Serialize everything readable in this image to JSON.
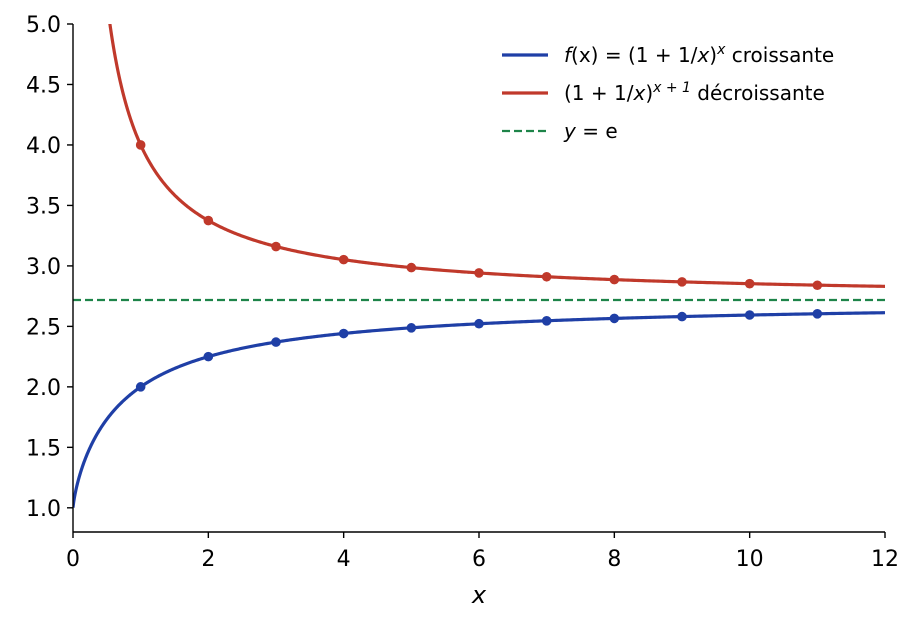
{
  "chart_data": {
    "type": "line",
    "title": "",
    "xlabel": "x",
    "ylabel": "",
    "xlim": [
      0,
      12
    ],
    "ylim": [
      0.8,
      5.0
    ],
    "xticks": [
      "0",
      "2",
      "4",
      "6",
      "8",
      "10",
      "12"
    ],
    "yticks": [
      "1.0",
      "1.5",
      "2.0",
      "2.5",
      "3.0",
      "3.5",
      "4.0",
      "4.5",
      "5.0"
    ],
    "grid": false,
    "legend_position": "top-right",
    "series": [
      {
        "id": "increasing",
        "name": "f(x) = (1 + 1/x)^x croissante",
        "legend": {
          "prefix": "f",
          "mid": "(x) = (1 + 1/",
          "var": "x",
          "close": ")",
          "sup": "x",
          "suffix": " croissante"
        },
        "color": "#1f3fa6",
        "style": "solid",
        "x_range": [
          0.0005,
          12
        ],
        "marker_x": [
          1,
          2,
          3,
          4,
          5,
          6,
          7,
          8,
          9,
          10,
          11
        ],
        "marker_y": [
          2.0,
          2.25,
          2.37,
          2.441,
          2.488,
          2.522,
          2.546,
          2.566,
          2.581,
          2.594,
          2.604
        ]
      },
      {
        "id": "decreasing",
        "name": "(1 + 1/x)^(x+1) décroissante",
        "legend": {
          "prefix": "",
          "mid": "(1 + 1/",
          "var": "x",
          "close": ")",
          "sup": "x + 1",
          "suffix": " décroissante"
        },
        "color": "#c0392b",
        "style": "solid",
        "x_range": [
          0.5,
          12
        ],
        "marker_x": [
          1,
          2,
          3,
          4,
          5,
          6,
          7,
          8,
          9,
          10,
          11
        ],
        "marker_y": [
          4.0,
          3.375,
          3.16,
          3.052,
          2.986,
          2.942,
          2.91,
          2.887,
          2.868,
          2.853,
          2.84
        ]
      },
      {
        "id": "e-line",
        "name": "y = e",
        "legend": {
          "prefix": "y",
          "mid": " = e",
          "var": "",
          "close": "",
          "sup": "",
          "suffix": ""
        },
        "color": "#1e8449",
        "style": "dashed",
        "value": 2.718
      }
    ]
  }
}
